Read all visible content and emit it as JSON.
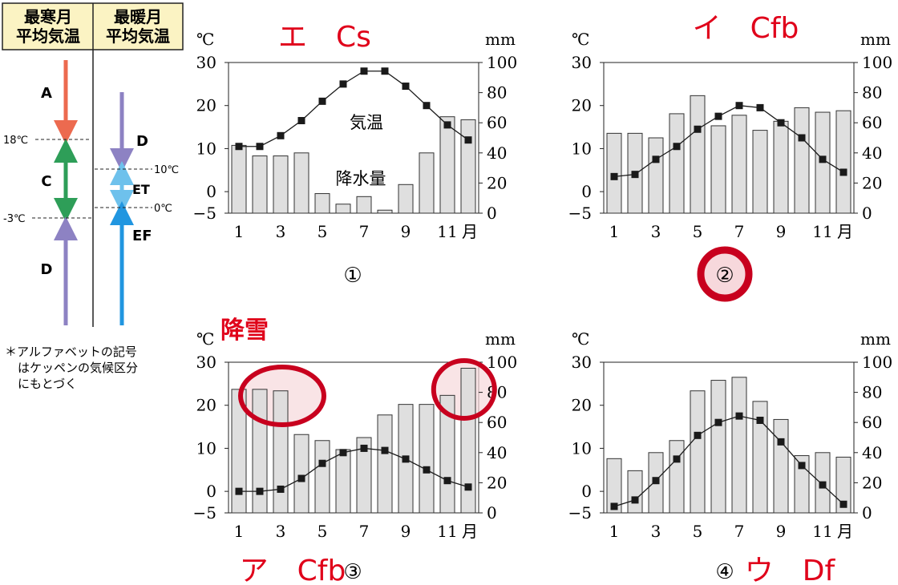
{
  "legend_panel": {
    "header_left": [
      "最寒月",
      "平均気温"
    ],
    "header_right": [
      "最暖月",
      "平均気温"
    ],
    "left_segments": [
      {
        "label": "A",
        "color": "#ec6a4f"
      },
      {
        "label": "C",
        "color": "#2e9e58"
      },
      {
        "label": "D",
        "color": "#8d82c3"
      }
    ],
    "left_thresholds": [
      "18℃",
      "-3℃"
    ],
    "right_segments": [
      {
        "label": "D",
        "color": "#8d82c3"
      },
      {
        "label": "ET",
        "color": "#6ec1ec"
      },
      {
        "label": "EF",
        "color": "#2196e0"
      }
    ],
    "right_thresholds": [
      "10℃",
      "0℃"
    ],
    "footnote": [
      "＊アルファベットの記号",
      "はケッペンの気候区分",
      "にもとづく"
    ]
  },
  "colors": {
    "bar_fill": "#dcdcdc",
    "line": "#1a1a1a",
    "annotation": "#e0001a",
    "highlight_ring": "#c8001e",
    "highlight_fill": "#f7d8dc",
    "header_fill": "#fbf3c3"
  },
  "axis_labels": {
    "temp_unit": "℃",
    "precip_unit": "mm",
    "month_unit": "月",
    "x_ticks": [
      "1",
      "3",
      "5",
      "7",
      "9",
      "11"
    ]
  },
  "chart_data": [
    {
      "type": "bar+line",
      "number_label": "①",
      "annotation": "エ　Cs",
      "inside_labels": {
        "line": "気温",
        "bars": "降水量"
      },
      "x": [
        1,
        2,
        3,
        4,
        5,
        6,
        7,
        8,
        9,
        10,
        11,
        12
      ],
      "temp_ylim": [
        -5,
        30
      ],
      "temp_ticks": [
        "30",
        "20",
        "10",
        "0",
        "−5"
      ],
      "precip_ylim": [
        0,
        100
      ],
      "precip_ticks": [
        "100",
        "80",
        "60",
        "40",
        "20",
        "0"
      ],
      "precipitation_mm": [
        45,
        38,
        38,
        40,
        13,
        6,
        11,
        2,
        19,
        40,
        64,
        62
      ],
      "temperature_c": [
        10.5,
        10.5,
        13,
        16.5,
        21,
        25,
        28,
        28,
        24.5,
        20,
        15.5,
        12
      ]
    },
    {
      "type": "bar+line",
      "number_label": "②",
      "annotation": "イ　Cfb",
      "highlight": "circle-number",
      "x": [
        1,
        2,
        3,
        4,
        5,
        6,
        7,
        8,
        9,
        10,
        11,
        12
      ],
      "temp_ylim": [
        -5,
        30
      ],
      "temp_ticks": [
        "30",
        "20",
        "10",
        "0",
        "−5"
      ],
      "precip_ylim": [
        0,
        100
      ],
      "precip_ticks": [
        "100",
        "80",
        "60",
        "40",
        "20",
        "0"
      ],
      "precipitation_mm": [
        53,
        53,
        50,
        66,
        78,
        58,
        65,
        55,
        61,
        70,
        67,
        68
      ],
      "temperature_c": [
        3.5,
        4,
        7.5,
        10.5,
        14.5,
        17.5,
        20,
        19.5,
        16,
        12.5,
        7.5,
        4.5
      ]
    },
    {
      "type": "bar+line",
      "number_label": "③",
      "annotation": "ア　Cfb",
      "extra_annotation": "降雪",
      "highlight": "ellipses-winter-bars",
      "x": [
        1,
        2,
        3,
        4,
        5,
        6,
        7,
        8,
        9,
        10,
        11,
        12
      ],
      "temp_ylim": [
        -5,
        30
      ],
      "temp_ticks": [
        "30",
        "20",
        "10",
        "0",
        "−5"
      ],
      "precip_ylim": [
        0,
        100
      ],
      "precip_ticks": [
        "100",
        "80",
        "60",
        "40",
        "20",
        "0"
      ],
      "precipitation_mm": [
        82,
        82,
        81,
        52,
        48,
        42,
        50,
        65,
        72,
        72,
        78,
        96
      ],
      "temperature_c": [
        0,
        0,
        0.5,
        3,
        6.5,
        9,
        10,
        9.5,
        7.5,
        5,
        2.5,
        1
      ]
    },
    {
      "type": "bar+line",
      "number_label": "④",
      "annotation": "ウ　Df",
      "x": [
        1,
        2,
        3,
        4,
        5,
        6,
        7,
        8,
        9,
        10,
        11,
        12
      ],
      "temp_ylim": [
        -5,
        30
      ],
      "temp_ticks": [
        "30",
        "20",
        "10",
        "0",
        "−5"
      ],
      "precip_ylim": [
        0,
        100
      ],
      "precip_ticks": [
        "100",
        "80",
        "60",
        "40",
        "20",
        "0"
      ],
      "precipitation_mm": [
        36,
        28,
        40,
        48,
        81,
        88,
        90,
        74,
        62,
        38,
        40,
        37
      ],
      "temperature_c": [
        -3.5,
        -2,
        2.5,
        7.5,
        13,
        16,
        17.5,
        16.5,
        11.5,
        6,
        1.5,
        -3
      ]
    }
  ]
}
